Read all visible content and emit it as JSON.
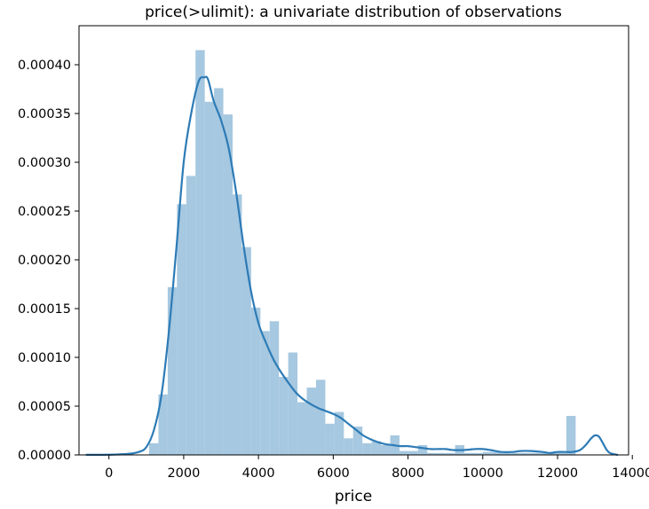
{
  "chart_data": {
    "type": "histogram",
    "title": "price(>ulimit): a univariate distribution of observations",
    "xlabel": "price",
    "ylabel": "",
    "xlim": [
      -800,
      13900
    ],
    "ylim": [
      0,
      0.00044
    ],
    "xticks": [
      0,
      2000,
      4000,
      6000,
      8000,
      10000,
      12000,
      14000
    ],
    "xtick_labels": [
      "0",
      "2000",
      "4000",
      "6000",
      "8000",
      "10000",
      "12000",
      "14000"
    ],
    "yticks": [
      0,
      5e-05,
      0.0001,
      0.00015,
      0.0002,
      0.00025,
      0.0003,
      0.00035,
      0.0004
    ],
    "ytick_labels": [
      "0.00000",
      "0.00005",
      "0.00010",
      "0.00015",
      "0.00020",
      "0.00025",
      "0.00030",
      "0.00035",
      "0.00040"
    ],
    "grid": false,
    "bar_color": "#a6c8e0",
    "line_color": "#2d7bb6",
    "bins": {
      "edges": [
        1076,
        1324,
        1572,
        1820,
        2068,
        2316,
        2564,
        2812,
        3060,
        3308,
        3556,
        3804,
        4052,
        4300,
        4548,
        4796,
        5044,
        5292,
        5540,
        5788,
        6036,
        6284,
        6532,
        6780,
        7028,
        7276,
        7524,
        7772,
        8020,
        8268,
        8516,
        8764,
        9012,
        9260,
        9508,
        9756,
        10004,
        10252,
        10500,
        10748,
        10996,
        11244,
        11492,
        11740,
        11988,
        12236,
        12484,
        12732,
        12980
      ],
      "densities": [
        1.2e-05,
        6.2e-05,
        0.000172,
        0.000257,
        0.000286,
        0.000415,
        0.000362,
        0.000376,
        0.000349,
        0.000267,
        0.000213,
        0.000151,
        0.000127,
        0.000137,
        8e-05,
        0.000105,
        5.4e-05,
        6.9e-05,
        7.7e-05,
        3.2e-05,
        4.4e-05,
        1.7e-05,
        2.9e-05,
        1.2e-05,
        1.4e-05,
        1e-05,
        2e-05,
        4e-06,
        4e-06,
        1e-05,
        2e-06,
        2e-06,
        2e-06,
        1e-05,
        2e-06,
        2e-06,
        3e-06,
        3e-06,
        2e-06,
        2e-06,
        2e-06,
        2e-06,
        2e-06,
        2e-06,
        2e-06,
        4e-05,
        0.0,
        0.0
      ]
    },
    "kde": {
      "x": [
        -600,
        0,
        500,
        800,
        1000,
        1200,
        1400,
        1600,
        1800,
        2000,
        2200,
        2400,
        2550,
        2650,
        2800,
        3000,
        3200,
        3400,
        3600,
        3800,
        4000,
        4200,
        4400,
        4600,
        4800,
        5000,
        5200,
        5400,
        5600,
        5800,
        6000,
        6200,
        6400,
        6600,
        6800,
        7000,
        7200,
        7400,
        7600,
        7800,
        8000,
        8200,
        8400,
        8600,
        8800,
        9000,
        9200,
        9500,
        9800,
        10000,
        10200,
        10500,
        10800,
        11000,
        11300,
        11600,
        11800,
        12000,
        12200,
        12400,
        12600,
        12750,
        12900,
        13000,
        13100,
        13200,
        13300,
        13400,
        13600
      ],
      "y": [
        1e-07,
        2e-07,
        1e-06,
        3e-06,
        8e-06,
        2.5e-05,
        6e-05,
        0.000125,
        0.00021,
        0.0003,
        0.00035,
        0.000383,
        0.000387,
        0.000385,
        0.000363,
        0.000343,
        0.000315,
        0.00027,
        0.000215,
        0.000168,
        0.000135,
        0.000115,
        9.8e-05,
        8.5e-05,
        7.4e-05,
        6.4e-05,
        5.7e-05,
        5.2e-05,
        4.8e-05,
        4.5e-05,
        4.2e-05,
        3.8e-05,
        3.2e-05,
        2.6e-05,
        2e-05,
        1.6e-05,
        1.3e-05,
        1.1e-05,
        1e-05,
        9e-06,
        9e-06,
        8e-06,
        7e-06,
        6e-06,
        6e-06,
        6e-06,
        5e-06,
        5e-06,
        6e-06,
        6e-06,
        5e-06,
        3e-06,
        3e-06,
        4e-06,
        4e-06,
        3e-06,
        2e-06,
        3e-06,
        3e-06,
        3e-06,
        5e-06,
        1e-05,
        1.7e-05,
        2e-05,
        1.9e-05,
        1.3e-05,
        6e-06,
        2e-06,
        1e-07
      ]
    }
  }
}
